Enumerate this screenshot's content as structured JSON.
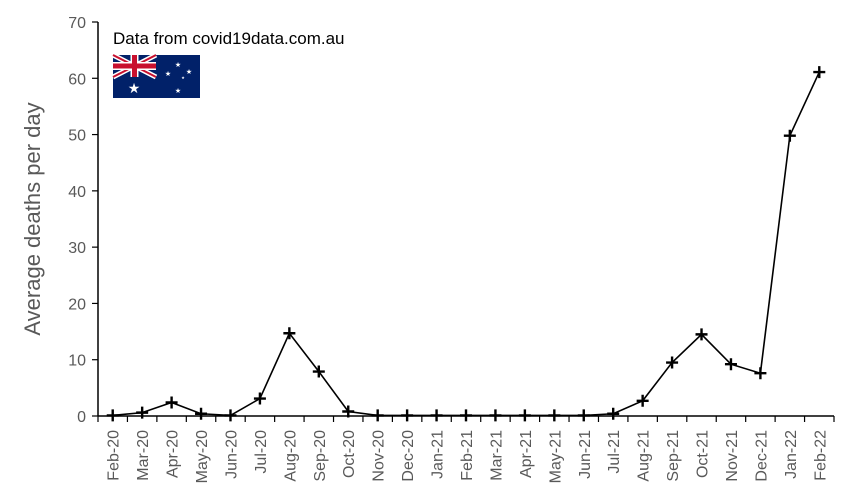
{
  "chart_data": {
    "type": "line",
    "categories": [
      "Feb-20",
      "Mar-20",
      "Apr-20",
      "May-20",
      "Jun-20",
      "Jul-20",
      "Aug-20",
      "Sep-20",
      "Oct-20",
      "Nov-20",
      "Dec-20",
      "Jan-21",
      "Feb-21",
      "Mar-21",
      "Apr-21",
      "May-21",
      "Jun-21",
      "Jul-21",
      "Aug-21",
      "Sep-21",
      "Oct-21",
      "Nov-21",
      "Dec-21",
      "Jan-22",
      "Feb-22"
    ],
    "series": [
      {
        "values": [
          0.1,
          0.6,
          2.4,
          0.4,
          0.1,
          3.1,
          14.7,
          7.9,
          0.8,
          0.1,
          0.1,
          0.1,
          0.1,
          0.1,
          0.1,
          0.1,
          0.1,
          0.4,
          2.7,
          9.5,
          14.5,
          9.2,
          7.6,
          49.8,
          61.1
        ],
        "color": "#000000",
        "marker": "plus"
      }
    ],
    "title": "",
    "xlabel": "",
    "ylabel": "Average deaths per day",
    "ylim": [
      0,
      70
    ],
    "yticks": [
      0,
      10,
      20,
      30,
      40,
      50,
      60,
      70
    ],
    "grid": false,
    "legend": "none",
    "annotation": "Data from covid19data.com.au",
    "flag": "australian-flag"
  }
}
